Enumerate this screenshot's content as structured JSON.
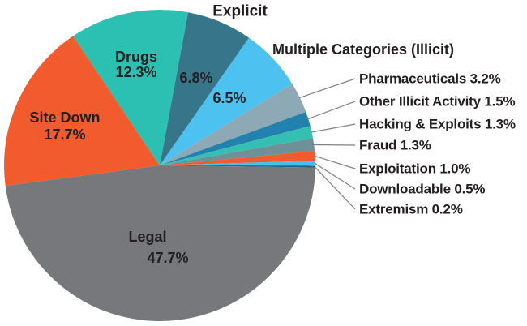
{
  "figure": {
    "background": "#ffffff",
    "text_color": "#231f20",
    "leader_line_color": "#808285"
  },
  "chart_data": {
    "type": "pie",
    "title": "",
    "legend_position": "none",
    "units": "percent",
    "total": 100.0,
    "start_angle_deg_clockwise_from_top": 10.5,
    "slices": [
      {
        "id": "explicit",
        "label": "Explicit",
        "value": 6.8,
        "color": "#36758a",
        "inside_lines": [
          "6.8%"
        ],
        "outside_label": "Explicit"
      },
      {
        "id": "multiple-categories",
        "label": "Multiple Categories (Illicit)",
        "value": 6.5,
        "color": "#4dc1ef",
        "inside_lines": [
          "6.5%"
        ],
        "outside_label": "Multiple Categories (Illicit)"
      },
      {
        "id": "pharmaceuticals",
        "label": "Pharmaceuticals",
        "value": 3.2,
        "color": "#8ea9b6",
        "callout_label": "Pharmaceuticals 3.2%"
      },
      {
        "id": "other-illicit-activity",
        "label": "Other Illicit Activity",
        "value": 1.5,
        "color": "#2381ad",
        "callout_label": "Other Illicit Activity 1.5%"
      },
      {
        "id": "hacking-exploits",
        "label": "Hacking & Exploits",
        "value": 1.3,
        "color": "#35bfb2",
        "callout_label": "Hacking & Exploits 1.3%"
      },
      {
        "id": "fraud",
        "label": "Fraud",
        "value": 1.3,
        "color": "#6f9097",
        "callout_label": "Fraud 1.3%"
      },
      {
        "id": "exploitation",
        "label": "Exploitation",
        "value": 1.0,
        "color": "#f15b2e",
        "callout_label": "Exploitation 1.0%"
      },
      {
        "id": "downloadable",
        "label": "Downloadable",
        "value": 0.5,
        "color": "#44c0f0",
        "callout_label": "Downloadable 0.5%"
      },
      {
        "id": "extremism",
        "label": "Extremism",
        "value": 0.2,
        "color": "#1b657f",
        "callout_label": "Extremism 0.2%"
      },
      {
        "id": "legal",
        "label": "Legal",
        "value": 47.7,
        "color": "#77787b",
        "inside_lines": [
          "Legal",
          "47.7%"
        ]
      },
      {
        "id": "site-down",
        "label": "Site Down",
        "value": 17.7,
        "color": "#f15b2e",
        "inside_lines": [
          "Site Down",
          "17.7%"
        ]
      },
      {
        "id": "drugs",
        "label": "Drugs",
        "value": 12.3,
        "color": "#2cc0b3",
        "inside_lines": [
          "Drugs",
          "12.3%"
        ]
      }
    ]
  }
}
